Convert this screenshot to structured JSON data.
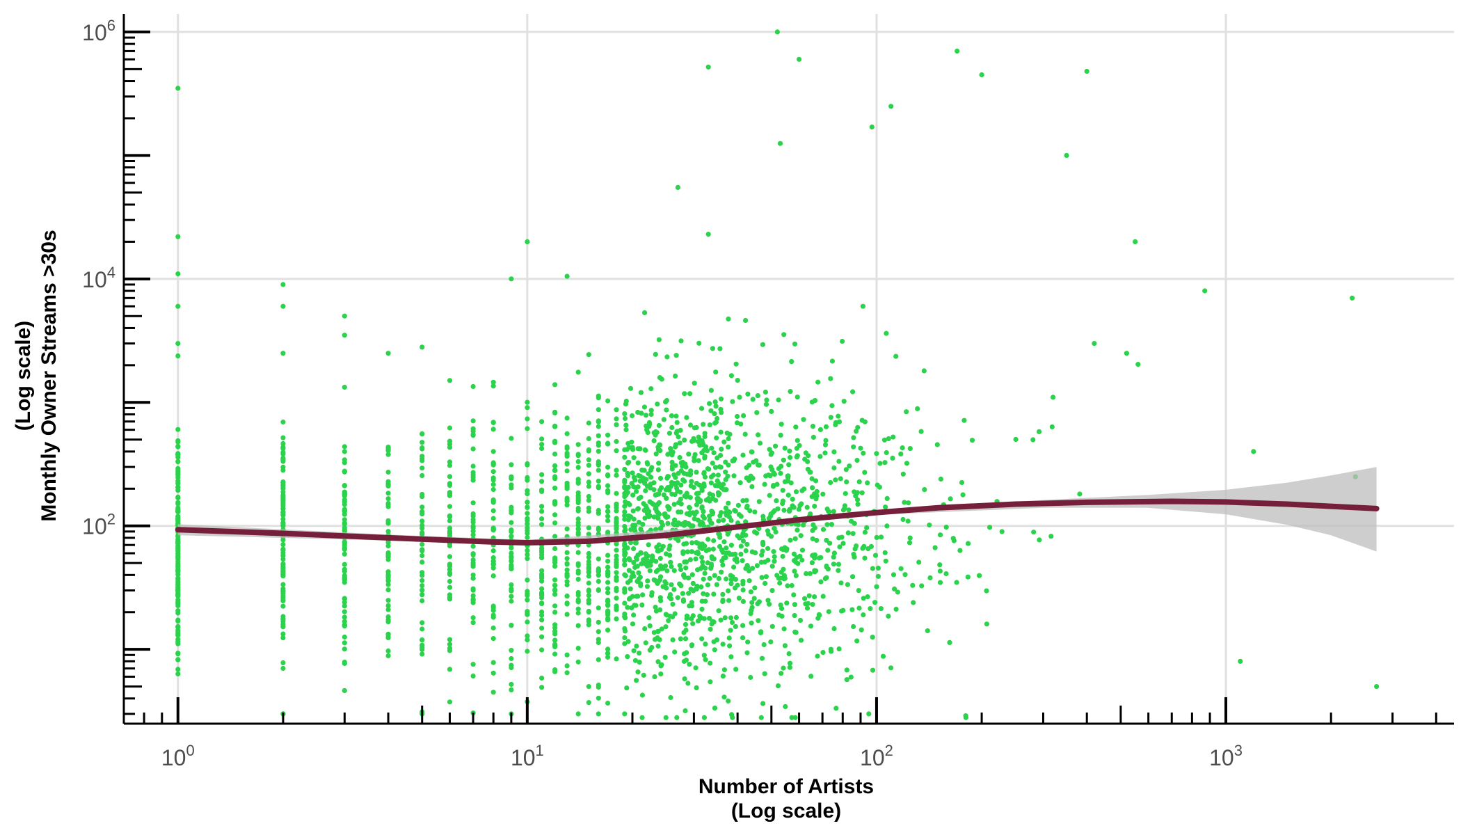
{
  "colors": {
    "points": "#2ad34b",
    "smooth_line": "#751f3a",
    "confidence_band": "#bdbdbd",
    "grid": "#e0e0e0",
    "axis": "#000000"
  },
  "chart_data": {
    "type": "scatter",
    "x_scale": "log10",
    "y_scale": "log10",
    "xlabel": [
      "Number of Artists",
      "(Log scale)"
    ],
    "ylabel": [
      "(Log scale)",
      "Monthly Owner Streams >30s"
    ],
    "xlim": [
      0.7,
      4500
    ],
    "ylim": [
      2.5,
      1400000
    ],
    "x_major_ticks": [
      1,
      10,
      100,
      1000
    ],
    "x_tick_labels": [
      "10^0",
      "10^1",
      "10^2",
      "10^3"
    ],
    "y_major_ticks": [
      100,
      10000,
      1000000
    ],
    "y_tick_labels": [
      "10^2",
      "10^4",
      "10^6"
    ],
    "grid": true,
    "legend": "none",
    "sampled_points": {
      "x": [
        1,
        1,
        1,
        1,
        1,
        2,
        2,
        2,
        3,
        3,
        4,
        5,
        10,
        9,
        13,
        27,
        33,
        52,
        60,
        170,
        200,
        320,
        400,
        53,
        33,
        97,
        110,
        350,
        550,
        2300,
        2350,
        2700,
        1100,
        1200,
        870,
        420,
        520,
        180,
        95
      ],
      "y": [
        350000,
        22000,
        11000,
        6000,
        3000,
        9000,
        6000,
        2500,
        5000,
        3500,
        2500,
        2800,
        20000,
        10000,
        10500,
        55000,
        520000,
        1000000,
        600000,
        700000,
        450000,
        1100,
        480000,
        125000,
        23000,
        170000,
        250000,
        100000,
        20000,
        7000,
        250,
        5,
        8,
        400,
        8000,
        3000,
        2500,
        2.9,
        3
      ]
    },
    "smooth_line": {
      "x": [
        1,
        2,
        4,
        8,
        10,
        15,
        25,
        40,
        60,
        100,
        150,
        250,
        400,
        700,
        1000,
        1500,
        2700
      ],
      "y": [
        93,
        87,
        80,
        74,
        73,
        75,
        84,
        98,
        112,
        128,
        140,
        150,
        155,
        158,
        156,
        150,
        138
      ]
    },
    "confidence_band": {
      "x": [
        1,
        4,
        10,
        40,
        100,
        300,
        600,
        1000,
        1500,
        2000,
        2700
      ],
      "lower": [
        84,
        76,
        70,
        94,
        123,
        140,
        140,
        124,
        102,
        84,
        62
      ],
      "upper": [
        103,
        85,
        77,
        102,
        133,
        162,
        178,
        196,
        224,
        256,
        300
      ]
    }
  }
}
